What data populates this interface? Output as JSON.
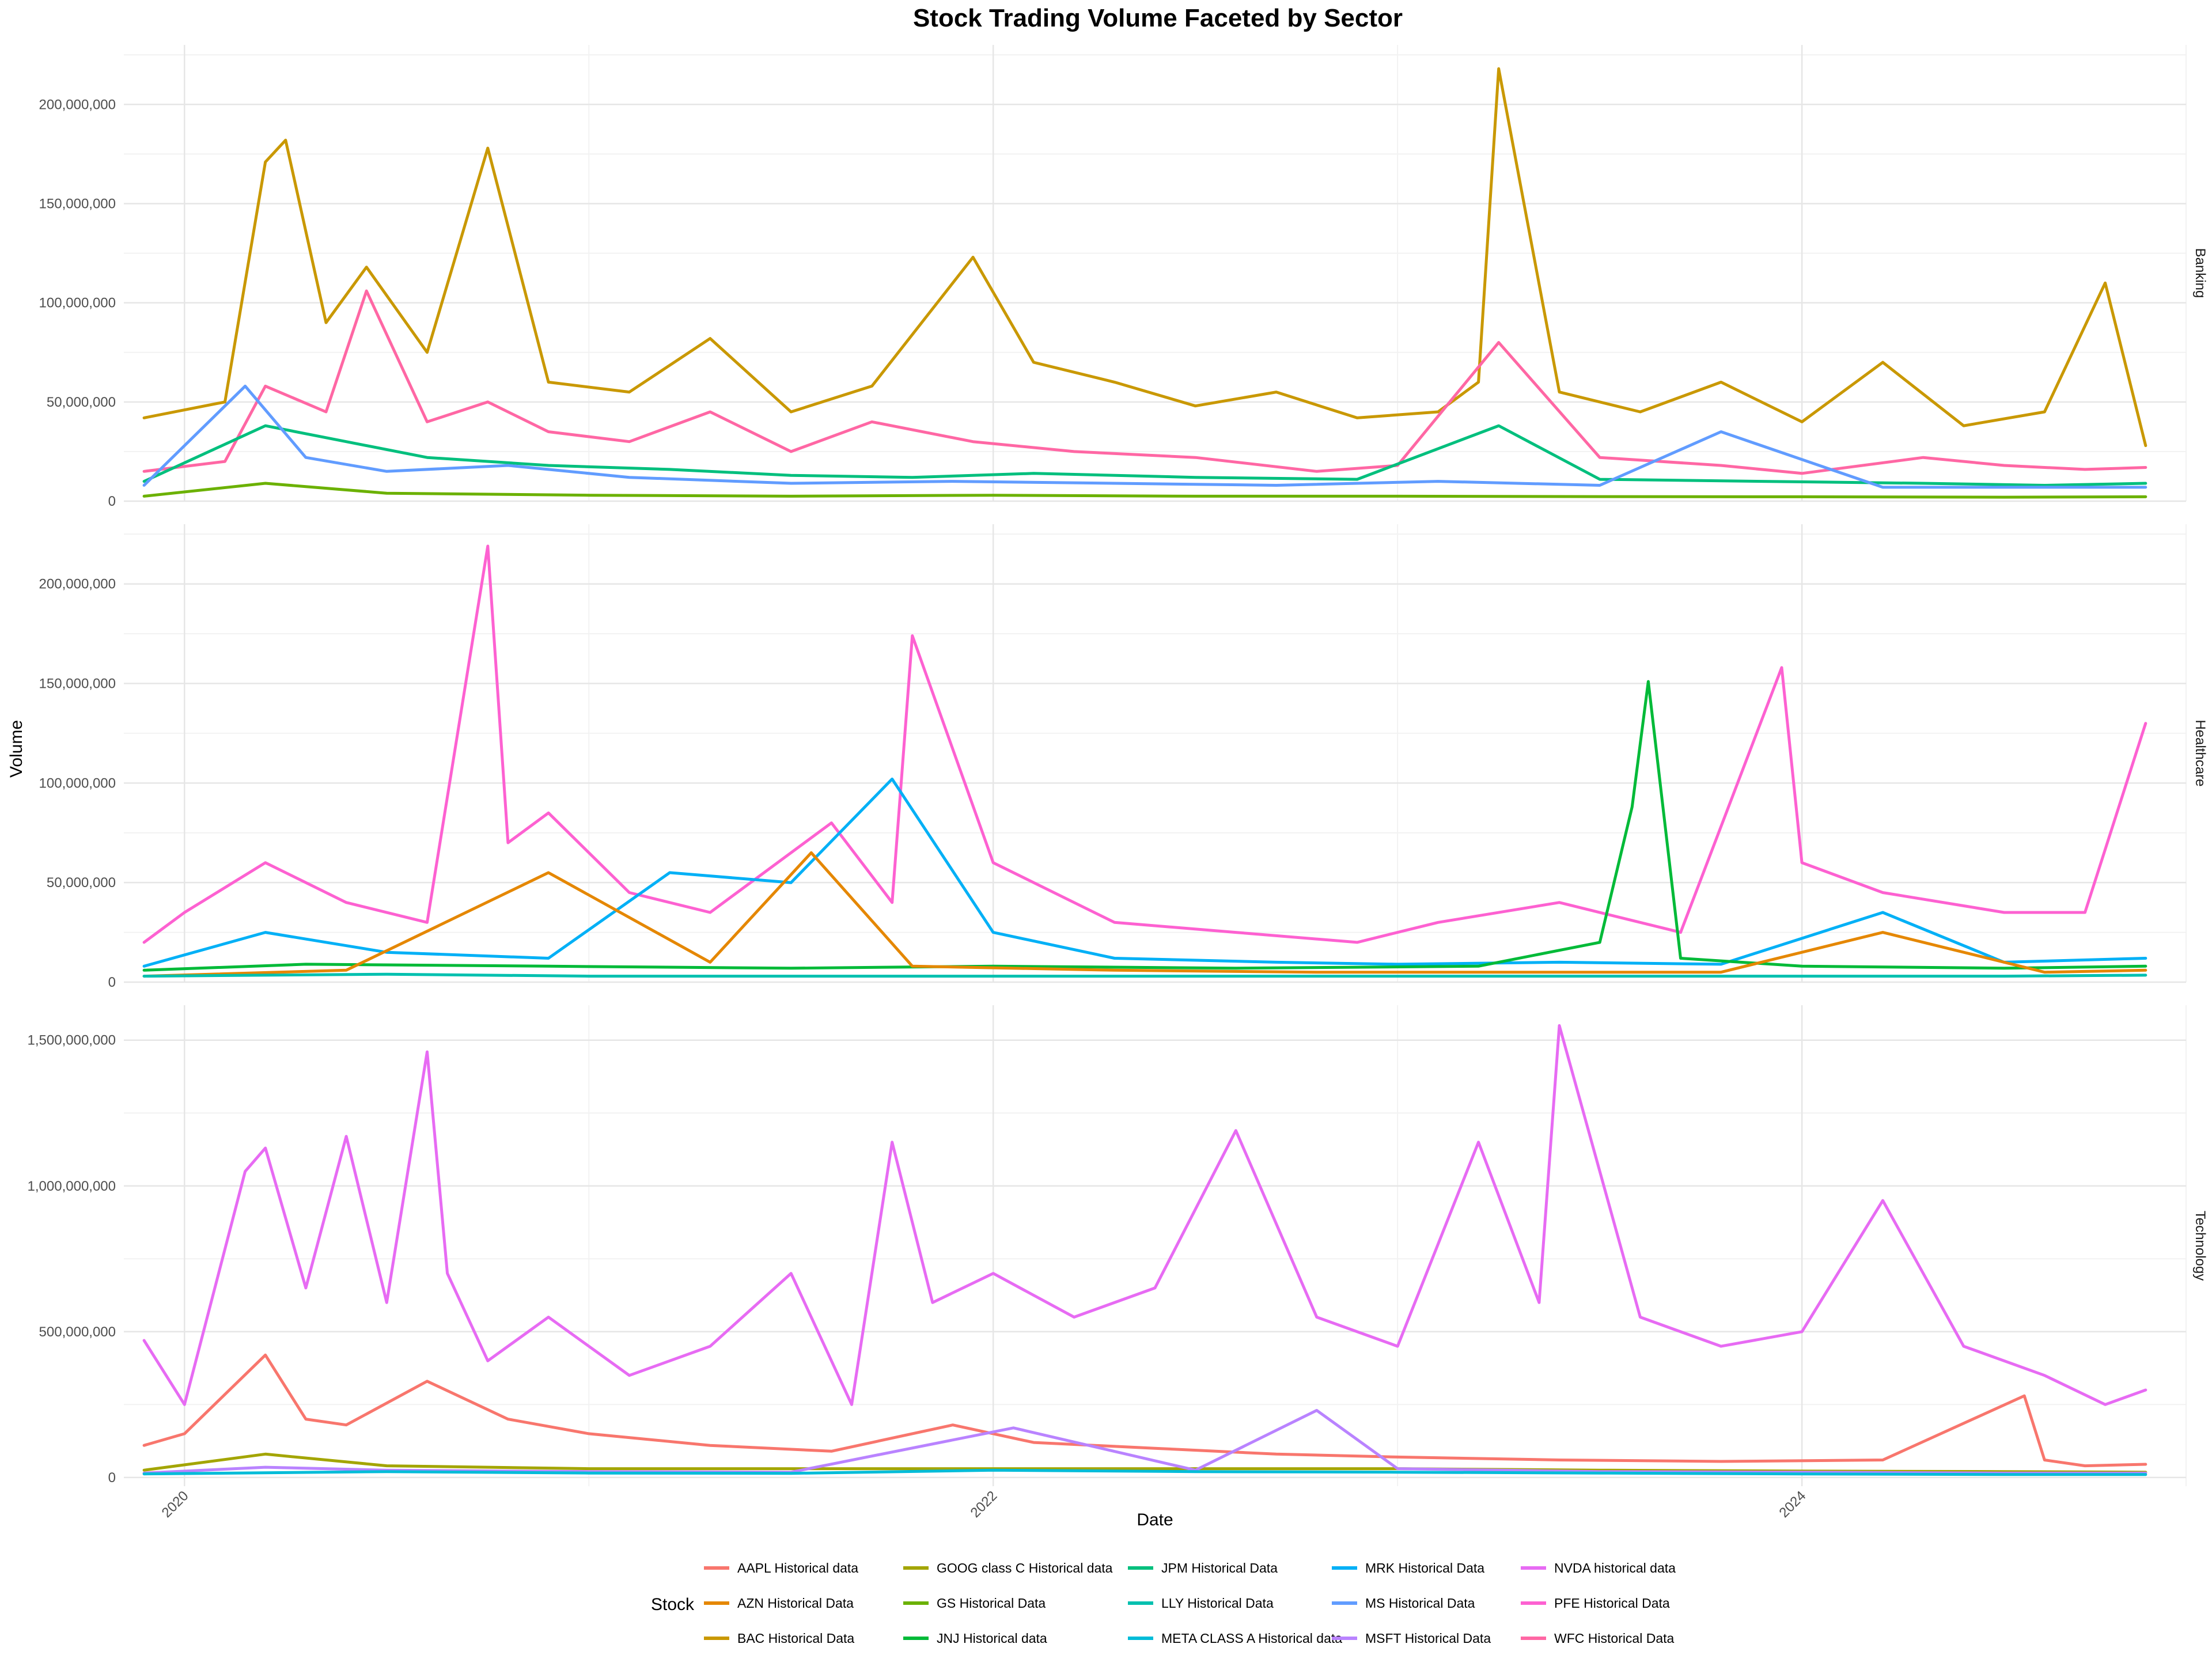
{
  "chart_data": {
    "type": "line",
    "title": "Stock Trading Volume Faceted by Sector",
    "xlabel": "Date",
    "ylabel": "Volume",
    "x_ticks": [
      "2020",
      "2022",
      "2024"
    ],
    "x_range": [
      2019.85,
      2024.95
    ],
    "grid": true,
    "legend": {
      "title": "Stock",
      "placement": "bottom",
      "entries": [
        {
          "name": "AAPL Historical data",
          "color": "#F8766D"
        },
        {
          "name": "AZN Historical Data",
          "color": "#E58700"
        },
        {
          "name": "BAC Historical Data",
          "color": "#C99800"
        },
        {
          "name": "GOOG class C Historical data",
          "color": "#A3A500"
        },
        {
          "name": "GS Historical Data",
          "color": "#6BB100"
        },
        {
          "name": "JNJ Historical data",
          "color": "#00BA38"
        },
        {
          "name": "JPM Historical Data",
          "color": "#00BF7D"
        },
        {
          "name": "LLY Historical Data",
          "color": "#00C0AF"
        },
        {
          "name": "META CLASS A Historical data",
          "color": "#00BCD8"
        },
        {
          "name": "MRK Historical Data",
          "color": "#00B0F6"
        },
        {
          "name": "MS Historical Data",
          "color": "#619CFF"
        },
        {
          "name": "MSFT Historical Data",
          "color": "#B983FF"
        },
        {
          "name": "NVDA historical data",
          "color": "#E76BF3"
        },
        {
          "name": "PFE Historical Data",
          "color": "#FD61D1"
        },
        {
          "name": "WFC Historical Data",
          "color": "#FF67A4"
        }
      ]
    },
    "facets": [
      {
        "strip": "Banking",
        "ylim": [
          0,
          230000000
        ],
        "y_ticks": [
          {
            "value": 0,
            "label": "0"
          },
          {
            "value": 50000000,
            "label": "50,000,000"
          },
          {
            "value": 100000000,
            "label": "100,000,000"
          },
          {
            "value": 150000000,
            "label": "150,000,000"
          },
          {
            "value": 200000000,
            "label": "200,000,000"
          }
        ],
        "series": [
          {
            "name": "BAC Historical Data",
            "color": "#C99800",
            "x": [
              2019.9,
              2020.1,
              2020.2,
              2020.25,
              2020.35,
              2020.45,
              2020.6,
              2020.75,
              2020.9,
              2021.1,
              2021.3,
              2021.5,
              2021.7,
              2021.95,
              2022.1,
              2022.3,
              2022.5,
              2022.7,
              2022.9,
              2023.1,
              2023.2,
              2023.25,
              2023.4,
              2023.6,
              2023.8,
              2024.0,
              2024.2,
              2024.4,
              2024.6,
              2024.75,
              2024.85
            ],
            "y": [
              42000000,
              50000000,
              171000000,
              182000000,
              90000000,
              118000000,
              75000000,
              178000000,
              60000000,
              55000000,
              82000000,
              45000000,
              58000000,
              123000000,
              70000000,
              60000000,
              48000000,
              55000000,
              42000000,
              45000000,
              60000000,
              218000000,
              55000000,
              45000000,
              60000000,
              40000000,
              70000000,
              38000000,
              45000000,
              110000000,
              28000000
            ]
          },
          {
            "name": "WFC Historical Data",
            "color": "#FF67A4",
            "x": [
              2019.9,
              2020.1,
              2020.2,
              2020.35,
              2020.45,
              2020.6,
              2020.75,
              2020.9,
              2021.1,
              2021.3,
              2021.5,
              2021.7,
              2021.95,
              2022.2,
              2022.5,
              2022.8,
              2023.0,
              2023.25,
              2023.5,
              2023.8,
              2024.0,
              2024.3,
              2024.5,
              2024.7,
              2024.85
            ],
            "y": [
              15000000,
              20000000,
              58000000,
              45000000,
              106000000,
              40000000,
              50000000,
              35000000,
              30000000,
              45000000,
              25000000,
              40000000,
              30000000,
              25000000,
              22000000,
              15000000,
              18000000,
              80000000,
              22000000,
              18000000,
              14000000,
              22000000,
              18000000,
              16000000,
              17000000
            ]
          },
          {
            "name": "JPM Historical Data",
            "color": "#00BF7D",
            "x": [
              2019.9,
              2020.2,
              2020.4,
              2020.6,
              2020.9,
              2021.2,
              2021.5,
              2021.8,
              2022.1,
              2022.5,
              2022.9,
              2023.25,
              2023.5,
              2023.9,
              2024.3,
              2024.6,
              2024.85
            ],
            "y": [
              10000000,
              38000000,
              30000000,
              22000000,
              18000000,
              16000000,
              13000000,
              12000000,
              14000000,
              12000000,
              11000000,
              38000000,
              11000000,
              10000000,
              9000000,
              8000000,
              9000000
            ]
          },
          {
            "name": "MS Historical Data",
            "color": "#619CFF",
            "x": [
              2019.9,
              2020.15,
              2020.3,
              2020.5,
              2020.8,
              2021.1,
              2021.5,
              2021.9,
              2022.3,
              2022.7,
              2023.1,
              2023.5,
              2023.8,
              2024.2,
              2024.6,
              2024.85
            ],
            "y": [
              8000000,
              58000000,
              22000000,
              15000000,
              18000000,
              12000000,
              9000000,
              10000000,
              9000000,
              8000000,
              10000000,
              8000000,
              35000000,
              7000000,
              7000000,
              7000000
            ]
          },
          {
            "name": "GS Historical Data",
            "color": "#6BB100",
            "x": [
              2019.9,
              2020.2,
              2020.5,
              2021.0,
              2021.5,
              2022.0,
              2022.5,
              2023.0,
              2023.5,
              2024.0,
              2024.5,
              2024.85
            ],
            "y": [
              2500000,
              9000000,
              4000000,
              3000000,
              2500000,
              3000000,
              2500000,
              2500000,
              2300000,
              2200000,
              2000000,
              2200000
            ]
          }
        ]
      },
      {
        "strip": "Healthcare",
        "ylim": [
          0,
          230000000
        ],
        "y_ticks": [
          {
            "value": 0,
            "label": "0"
          },
          {
            "value": 50000000,
            "label": "50,000,000"
          },
          {
            "value": 100000000,
            "label": "100,000,000"
          },
          {
            "value": 150000000,
            "label": "150,000,000"
          },
          {
            "value": 200000000,
            "label": "200,000,000"
          }
        ],
        "series": [
          {
            "name": "PFE Historical Data",
            "color": "#FD61D1",
            "x": [
              2019.9,
              2020.0,
              2020.2,
              2020.4,
              2020.6,
              2020.75,
              2020.8,
              2020.9,
              2021.1,
              2021.3,
              2021.6,
              2021.75,
              2021.8,
              2022.0,
              2022.3,
              2022.6,
              2022.9,
              2023.1,
              2023.4,
              2023.7,
              2023.95,
              2024.0,
              2024.2,
              2024.5,
              2024.7,
              2024.85
            ],
            "y": [
              20000000,
              35000000,
              60000000,
              40000000,
              30000000,
              219000000,
              70000000,
              85000000,
              45000000,
              35000000,
              80000000,
              40000000,
              174000000,
              60000000,
              30000000,
              25000000,
              20000000,
              30000000,
              40000000,
              25000000,
              158000000,
              60000000,
              45000000,
              35000000,
              35000000,
              130000000
            ]
          },
          {
            "name": "MRK Historical Data",
            "color": "#00B0F6",
            "x": [
              2019.9,
              2020.2,
              2020.5,
              2020.9,
              2021.2,
              2021.5,
              2021.75,
              2022.0,
              2022.3,
              2022.7,
              2023.0,
              2023.4,
              2023.8,
              2024.2,
              2024.5,
              2024.85
            ],
            "y": [
              8000000,
              25000000,
              15000000,
              12000000,
              55000000,
              50000000,
              102000000,
              25000000,
              12000000,
              10000000,
              9000000,
              10000000,
              9000000,
              35000000,
              10000000,
              12000000
            ]
          },
          {
            "name": "JNJ Historical data",
            "color": "#00BA38",
            "x": [
              2019.9,
              2020.3,
              2020.9,
              2021.5,
              2022.0,
              2022.6,
              2023.2,
              2023.5,
              2023.58,
              2023.62,
              2023.7,
              2024.0,
              2024.5,
              2024.85
            ],
            "y": [
              6000000,
              9000000,
              8000000,
              7000000,
              8000000,
              7000000,
              8000000,
              20000000,
              88000000,
              151000000,
              12000000,
              8000000,
              7000000,
              8000000
            ]
          },
          {
            "name": "AZN Historical Data",
            "color": "#E58700",
            "x": [
              2019.9,
              2020.4,
              2020.9,
              2021.3,
              2021.55,
              2021.8,
              2022.3,
              2022.8,
              2023.3,
              2023.8,
              2024.2,
              2024.6,
              2024.85
            ],
            "y": [
              3000000,
              6000000,
              55000000,
              10000000,
              65000000,
              8000000,
              6000000,
              5000000,
              5000000,
              5000000,
              25000000,
              5000000,
              6000000
            ]
          },
          {
            "name": "LLY Historical Data",
            "color": "#00C0AF",
            "x": [
              2019.9,
              2020.5,
              2021.0,
              2021.5,
              2022.0,
              2022.5,
              2023.0,
              2023.5,
              2024.0,
              2024.5,
              2024.85
            ],
            "y": [
              3000000,
              4000000,
              3000000,
              3000000,
              3000000,
              3000000,
              3000000,
              3000000,
              3000000,
              3000000,
              3500000
            ]
          }
        ]
      },
      {
        "strip": "Technology",
        "ylim": [
          -30000000,
          1620000000
        ],
        "y_ticks": [
          {
            "value": 0,
            "label": "0"
          },
          {
            "value": 500000000,
            "label": "500,000,000"
          },
          {
            "value": 1000000000,
            "label": "1,000,000,000"
          },
          {
            "value": 1500000000,
            "label": "1,500,000,000"
          }
        ],
        "series": [
          {
            "name": "NVDA historical data",
            "color": "#E76BF3",
            "x": [
              2019.9,
              2020.0,
              2020.15,
              2020.2,
              2020.3,
              2020.4,
              2020.5,
              2020.6,
              2020.65,
              2020.75,
              2020.9,
              2021.1,
              2021.3,
              2021.5,
              2021.65,
              2021.75,
              2021.85,
              2022.0,
              2022.2,
              2022.4,
              2022.6,
              2022.8,
              2023.0,
              2023.2,
              2023.35,
              2023.4,
              2023.6,
              2023.8,
              2024.0,
              2024.2,
              2024.4,
              2024.6,
              2024.75,
              2024.85
            ],
            "y": [
              470000000,
              250000000,
              1050000000,
              1130000000,
              650000000,
              1170000000,
              600000000,
              1460000000,
              700000000,
              400000000,
              550000000,
              350000000,
              450000000,
              700000000,
              250000000,
              1150000000,
              600000000,
              700000000,
              550000000,
              650000000,
              1190000000,
              550000000,
              450000000,
              1150000000,
              600000000,
              1550000000,
              550000000,
              450000000,
              500000000,
              950000000,
              450000000,
              350000000,
              250000000,
              300000000
            ]
          },
          {
            "name": "AAPL Historical data",
            "color": "#F8766D",
            "x": [
              2019.9,
              2020.0,
              2020.2,
              2020.3,
              2020.4,
              2020.6,
              2020.8,
              2021.0,
              2021.3,
              2021.6,
              2021.9,
              2022.1,
              2022.4,
              2022.7,
              2023.0,
              2023.4,
              2023.8,
              2024.2,
              2024.55,
              2024.6,
              2024.7,
              2024.85
            ],
            "y": [
              110000000,
              150000000,
              420000000,
              200000000,
              180000000,
              330000000,
              200000000,
              150000000,
              110000000,
              90000000,
              180000000,
              120000000,
              100000000,
              80000000,
              70000000,
              60000000,
              55000000,
              60000000,
              280000000,
              60000000,
              40000000,
              45000000
            ]
          },
          {
            "name": "GOOG class C Historical data",
            "color": "#A3A500",
            "x": [
              2019.9,
              2020.2,
              2020.5,
              2021.0,
              2021.5,
              2022.0,
              2022.5,
              2023.0,
              2023.5,
              2024.0,
              2024.5,
              2024.85
            ],
            "y": [
              25000000,
              80000000,
              40000000,
              30000000,
              30000000,
              30000000,
              30000000,
              30000000,
              25000000,
              22000000,
              20000000,
              18000000
            ]
          },
          {
            "name": "MSFT Historical Data",
            "color": "#B983FF",
            "x": [
              2019.9,
              2020.2,
              2020.5,
              2021.0,
              2021.5,
              2022.05,
              2022.5,
              2022.8,
              2023.0,
              2023.5,
              2024.0,
              2024.5,
              2024.85
            ],
            "y": [
              15000000,
              35000000,
              25000000,
              20000000,
              18000000,
              170000000,
              25000000,
              230000000,
              30000000,
              20000000,
              18000000,
              15000000,
              15000000
            ]
          },
          {
            "name": "META CLASS A Historical data",
            "color": "#00BCD8",
            "x": [
              2019.9,
              2020.5,
              2021.0,
              2021.5,
              2022.0,
              2022.5,
              2023.0,
              2023.5,
              2024.0,
              2024.5,
              2024.85
            ],
            "y": [
              12000000,
              20000000,
              15000000,
              14000000,
              25000000,
              20000000,
              18000000,
              15000000,
              12000000,
              10000000,
              10000000
            ]
          }
        ]
      }
    ]
  }
}
